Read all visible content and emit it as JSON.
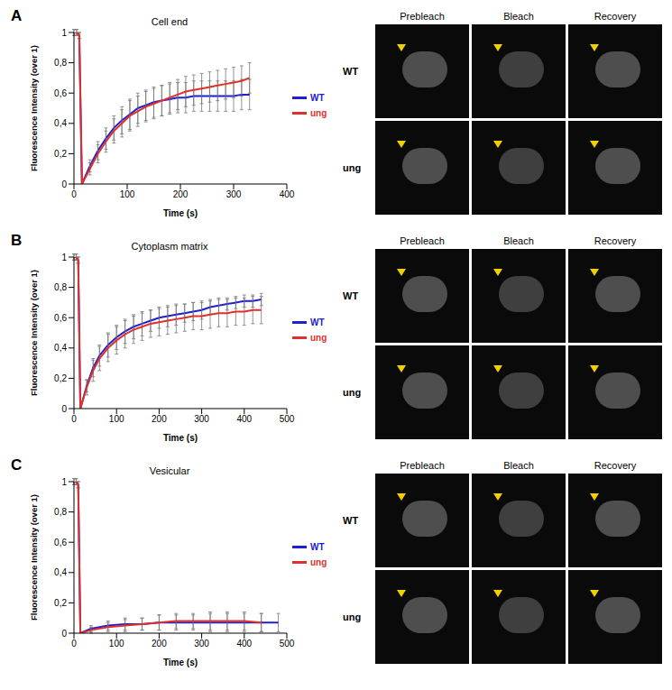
{
  "image_columns": [
    "Prebleach",
    "Bleach",
    "Recovery"
  ],
  "image_rows": [
    "WT",
    "ung"
  ],
  "chart_data": [
    {
      "panel": "A",
      "type": "line",
      "title": "Cell end",
      "x_label": "Time (s)",
      "y_label": "Fluorescence Intensity (over 1)",
      "legend": "right",
      "xlim": [
        0,
        400
      ],
      "xticks": [
        0,
        100,
        200,
        300,
        400
      ],
      "ylim": [
        0,
        1
      ],
      "yticks": [
        0,
        {
          "value": 0.2,
          "label": "0,2"
        },
        {
          "value": 0.4,
          "label": "0,4"
        },
        {
          "value": 0.6,
          "label": "0,6"
        },
        {
          "value": 0.8,
          "label": "0,8"
        },
        1
      ],
      "x": [
        0,
        5,
        10,
        15,
        30,
        45,
        60,
        75,
        90,
        105,
        120,
        135,
        150,
        165,
        180,
        195,
        210,
        225,
        240,
        255,
        270,
        285,
        300,
        315,
        330
      ],
      "series": [
        {
          "name": "WT",
          "color": "#2020d0",
          "values": [
            1,
            1,
            0.98,
            0,
            0.12,
            0.22,
            0.3,
            0.37,
            0.42,
            0.46,
            0.5,
            0.52,
            0.54,
            0.55,
            0.56,
            0.57,
            0.57,
            0.58,
            0.58,
            0.58,
            0.58,
            0.58,
            0.58,
            0.59,
            0.59
          ],
          "errors": [
            0.02,
            0.02,
            0.02,
            0,
            0.04,
            0.06,
            0.07,
            0.08,
            0.09,
            0.1,
            0.1,
            0.1,
            0.1,
            0.1,
            0.1,
            0.1,
            0.1,
            0.1,
            0.1,
            0.1,
            0.1,
            0.1,
            0.1,
            0.1,
            0.1
          ]
        },
        {
          "name": "ung",
          "color": "#e0302c",
          "values": [
            1,
            1,
            0.98,
            0,
            0.1,
            0.2,
            0.28,
            0.35,
            0.4,
            0.45,
            0.48,
            0.51,
            0.53,
            0.55,
            0.57,
            0.59,
            0.61,
            0.62,
            0.63,
            0.64,
            0.65,
            0.66,
            0.67,
            0.68,
            0.7
          ],
          "errors": [
            0.02,
            0.02,
            0.02,
            0,
            0.04,
            0.06,
            0.07,
            0.08,
            0.09,
            0.1,
            0.1,
            0.1,
            0.1,
            0.1,
            0.1,
            0.1,
            0.1,
            0.1,
            0.1,
            0.1,
            0.1,
            0.1,
            0.1,
            0.1,
            0.1
          ]
        }
      ]
    },
    {
      "panel": "B",
      "type": "line",
      "title": "Cytoplasm matrix",
      "x_label": "Time (s)",
      "y_label": "Fluorescence Intensity (over 1)",
      "legend": "right",
      "xlim": [
        0,
        500
      ],
      "xticks": [
        0,
        100,
        200,
        300,
        400,
        500
      ],
      "ylim": [
        0,
        1
      ],
      "yticks": [
        0,
        {
          "value": 0.2,
          "label": "0,2"
        },
        {
          "value": 0.4,
          "label": "0,4"
        },
        {
          "value": 0.6,
          "label": "0,6"
        },
        {
          "value": 0.8,
          "label": "0,8"
        },
        1
      ],
      "x": [
        0,
        5,
        10,
        15,
        30,
        45,
        60,
        80,
        100,
        120,
        140,
        160,
        180,
        200,
        220,
        240,
        260,
        280,
        300,
        320,
        340,
        360,
        380,
        400,
        420,
        440
      ],
      "series": [
        {
          "name": "WT",
          "color": "#2020d0",
          "values": [
            1,
            1,
            0.98,
            0,
            0.15,
            0.27,
            0.35,
            0.42,
            0.47,
            0.51,
            0.54,
            0.56,
            0.58,
            0.6,
            0.61,
            0.62,
            0.63,
            0.64,
            0.65,
            0.67,
            0.68,
            0.69,
            0.7,
            0.71,
            0.71,
            0.72
          ],
          "errors": [
            0.02,
            0.02,
            0.02,
            0,
            0.04,
            0.06,
            0.07,
            0.08,
            0.08,
            0.08,
            0.08,
            0.08,
            0.07,
            0.07,
            0.07,
            0.07,
            0.06,
            0.06,
            0.06,
            0.05,
            0.05,
            0.04,
            0.04,
            0.04,
            0.04,
            0.04
          ]
        },
        {
          "name": "ung",
          "color": "#e0302c",
          "values": [
            1,
            1,
            0.98,
            0,
            0.14,
            0.25,
            0.33,
            0.4,
            0.45,
            0.49,
            0.52,
            0.54,
            0.56,
            0.57,
            0.58,
            0.59,
            0.6,
            0.61,
            0.61,
            0.62,
            0.63,
            0.63,
            0.64,
            0.64,
            0.65,
            0.65
          ],
          "errors": [
            0.02,
            0.02,
            0.02,
            0,
            0.05,
            0.07,
            0.08,
            0.09,
            0.09,
            0.09,
            0.09,
            0.09,
            0.09,
            0.09,
            0.09,
            0.09,
            0.09,
            0.09,
            0.09,
            0.09,
            0.09,
            0.09,
            0.09,
            0.09,
            0.09,
            0.09
          ]
        }
      ]
    },
    {
      "panel": "C",
      "type": "line",
      "title": "Vesicular",
      "x_label": "Time (s)",
      "y_label": "Fluorescence Intensity (over 1)",
      "legend": "right",
      "xlim": [
        0,
        500
      ],
      "xticks": [
        0,
        100,
        200,
        300,
        400,
        500
      ],
      "ylim": [
        0,
        1
      ],
      "yticks": [
        0,
        {
          "value": 0.2,
          "label": "0,2"
        },
        {
          "value": 0.4,
          "label": "0,4"
        },
        {
          "value": 0.6,
          "label": "0,6"
        },
        {
          "value": 0.8,
          "label": "0,8"
        },
        1
      ],
      "x": [
        0,
        5,
        10,
        15,
        40,
        80,
        120,
        160,
        200,
        240,
        280,
        320,
        360,
        400,
        440,
        480
      ],
      "series": [
        {
          "name": "WT",
          "color": "#2020d0",
          "values": [
            1,
            1,
            0.98,
            0,
            0.03,
            0.05,
            0.06,
            0.06,
            0.07,
            0.07,
            0.07,
            0.07,
            0.07,
            0.07,
            0.07,
            0.07
          ],
          "errors": [
            0.02,
            0.02,
            0.02,
            0,
            0.02,
            0.03,
            0.04,
            0.04,
            0.05,
            0.05,
            0.05,
            0.06,
            0.06,
            0.06,
            0.06,
            0.06
          ]
        },
        {
          "name": "ung",
          "color": "#e0302c",
          "values": [
            1,
            1,
            0.98,
            0,
            0.02,
            0.04,
            0.05,
            0.06,
            0.07,
            0.08,
            0.08,
            0.08,
            0.08,
            0.08,
            0.07,
            null
          ],
          "errors": [
            0.02,
            0.02,
            0.02,
            0,
            0.02,
            0.03,
            0.04,
            0.04,
            0.05,
            0.05,
            0.05,
            0.06,
            0.06,
            0.06,
            0.06,
            null
          ]
        }
      ]
    }
  ]
}
